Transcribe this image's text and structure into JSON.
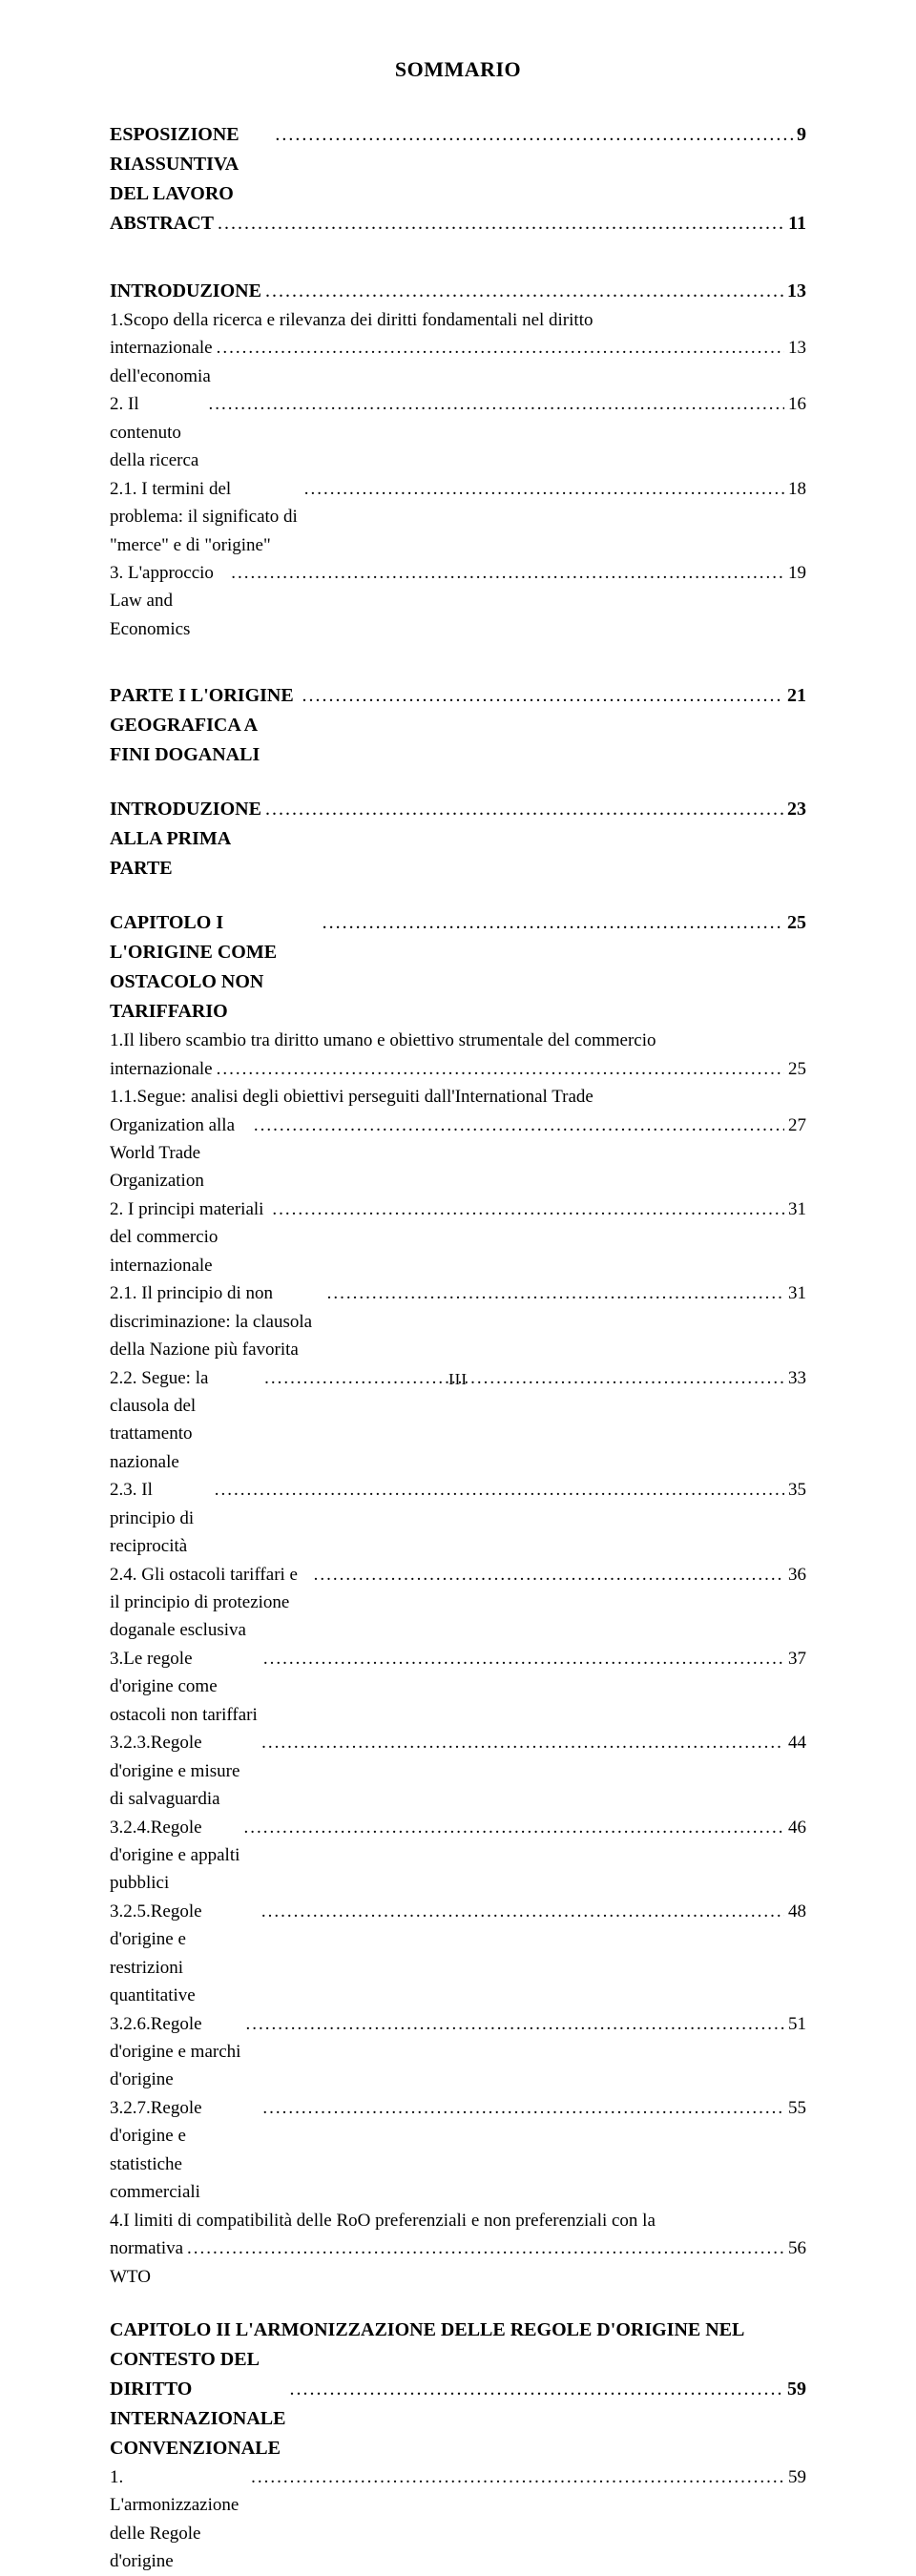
{
  "title": {
    "main": "S",
    "rest": "OMMARIO"
  },
  "toc": [
    {
      "kind": "bold",
      "segments": [
        {
          "t": "E",
          "sc": false
        },
        {
          "t": "SPOSIZIONE RIASSUNTIVA DEL LAVORO",
          "sc": true
        }
      ],
      "page": "9"
    },
    {
      "kind": "bold",
      "segments": [
        {
          "t": "A",
          "sc": false
        },
        {
          "t": "BSTRACT",
          "sc": true
        }
      ],
      "page": "11"
    },
    {
      "kind": "spacer-lg"
    },
    {
      "kind": "bold",
      "segments": [
        {
          "t": "I",
          "sc": false
        },
        {
          "t": "NTRODUZIONE",
          "sc": true
        }
      ],
      "page": "13"
    },
    {
      "kind": "plain",
      "text": "1.Scopo della ricerca e rilevanza dei diritti fondamentali nel diritto internazionale dell'economia",
      "page": "13"
    },
    {
      "kind": "plain",
      "text": "2. Il contenuto della ricerca",
      "page": "16"
    },
    {
      "kind": "plain",
      "text": "2.1. I termini del problema: il significato di \"merce\" e di \"origine\"",
      "page": "18"
    },
    {
      "kind": "plain",
      "text": "3. L'approccio Law and Economics",
      "page": "19"
    },
    {
      "kind": "spacer-lg"
    },
    {
      "kind": "bold",
      "segments": [
        {
          "t": "P",
          "sc": false
        },
        {
          "t": "ARTE ",
          "sc": true
        },
        {
          "t": "I  L'",
          "sc": false
        },
        {
          "t": "ORIGINE GEOGRAFICA A FINI DOGANALI",
          "sc": true
        }
      ],
      "page": "21"
    },
    {
      "kind": "spacer-md"
    },
    {
      "kind": "bold",
      "segments": [
        {
          "t": "I",
          "sc": false
        },
        {
          "t": "NTRODUZIONE ALLA PRIMA PARTE",
          "sc": true
        }
      ],
      "page": "23"
    },
    {
      "kind": "spacer-md"
    },
    {
      "kind": "bold",
      "segments": [
        {
          "t": "C",
          "sc": false
        },
        {
          "t": "APITOLO ",
          "sc": true
        },
        {
          "t": "I  L'",
          "sc": false
        },
        {
          "t": "ORIGINE COME OSTACOLO NON TARIFFARIO",
          "sc": true
        }
      ],
      "page": "25"
    },
    {
      "kind": "plain",
      "text": "1.Il libero scambio tra diritto umano e obiettivo strumentale del commercio internazionale",
      "page": "25"
    },
    {
      "kind": "plain",
      "text": "1.1.Segue: analisi degli obiettivi perseguiti dall'International Trade Organization alla World Trade Organization",
      "page": "27"
    },
    {
      "kind": "plain",
      "text": "2. I principi materiali del commercio internazionale",
      "page": "31"
    },
    {
      "kind": "plain",
      "text": "2.1. Il principio di non discriminazione: la clausola della Nazione più favorita",
      "page": "31"
    },
    {
      "kind": "plain",
      "text": "2.2. Segue: la clausola del trattamento nazionale",
      "page": "33"
    },
    {
      "kind": "plain",
      "text": "2.3. Il principio di reciprocità",
      "page": "35"
    },
    {
      "kind": "plain",
      "text": "2.4. Gli ostacoli tariffari e il principio di protezione doganale esclusiva",
      "page": "36"
    },
    {
      "kind": "plain",
      "text": "3.Le regole d'origine come ostacoli non tariffari",
      "page": "37"
    },
    {
      "kind": "plain",
      "text": "3.2.3.Regole d'origine e misure di salvaguardia",
      "page": "44"
    },
    {
      "kind": "plain",
      "text": "3.2.4.Regole d'origine e appalti pubblici",
      "page": "46"
    },
    {
      "kind": "plain",
      "text": "3.2.5.Regole d'origine e restrizioni quantitative",
      "page": "48"
    },
    {
      "kind": "plain",
      "text": "3.2.6.Regole d'origine e marchi d'origine",
      "page": "51"
    },
    {
      "kind": "plain",
      "text": "3.2.7.Regole d'origine e statistiche commerciali",
      "page": "55"
    },
    {
      "kind": "plain",
      "text": "4.I limiti di compatibilità delle RoO preferenziali e non preferenziali con la normativa WTO",
      "page": "56"
    },
    {
      "kind": "spacer-md"
    },
    {
      "kind": "boldwrap",
      "line1_segments": [
        {
          "t": "C",
          "sc": false
        },
        {
          "t": "APITOLO ",
          "sc": true
        },
        {
          "t": "II  L'",
          "sc": false
        },
        {
          "t": "ARMONIZZAZIONE DELLE REGOLE D",
          "sc": true
        },
        {
          "t": "'",
          "sc": false
        },
        {
          "t": "ORIGINE NEL CONTESTO DEL",
          "sc": true
        }
      ],
      "line2_segments": [
        {
          "t": "DIRITTO INTERNAZIONALE CONVENZIONALE",
          "sc": true
        }
      ],
      "page": "59"
    },
    {
      "kind": "plain",
      "text": "1. L'armonizzazione delle Regole d'origine",
      "page": "59"
    }
  ],
  "folio": "III"
}
